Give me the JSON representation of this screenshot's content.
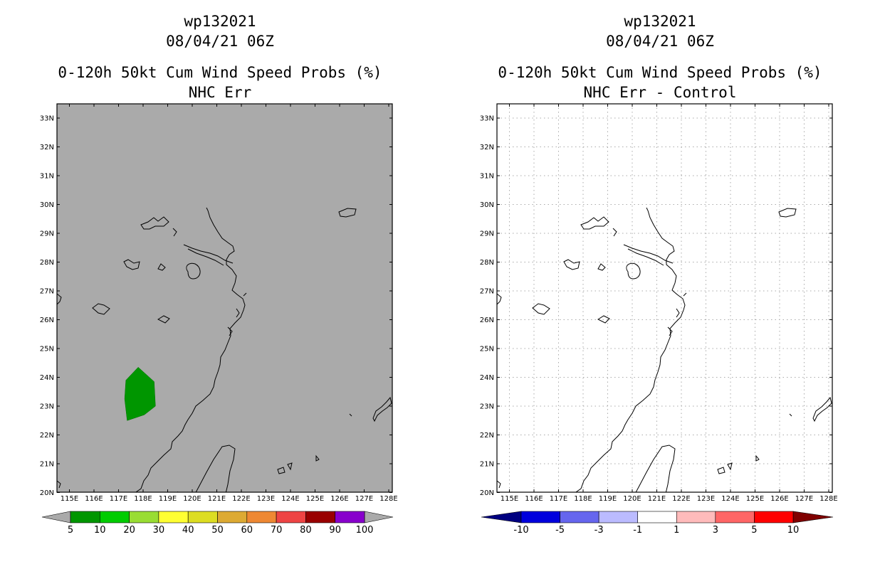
{
  "panels": [
    {
      "id": "left",
      "titles": [
        "wp132021",
        "08/04/21 06Z",
        "0-120h 50kt Cum Wind Speed Probs (%)",
        "NHC Err"
      ],
      "background": "#aaaaaa",
      "colorbar": {
        "labels": [
          "5",
          "10",
          "20",
          "30",
          "40",
          "50",
          "60",
          "70",
          "80",
          "90",
          "100"
        ],
        "colors": [
          "#009600",
          "#00cc00",
          "#99dd33",
          "#ffff33",
          "#dddd22",
          "#ddaa33",
          "#ee8833",
          "#ee4444",
          "#990000",
          "#8800cc"
        ],
        "end_colors": [
          "#aaaaaa",
          "#aaaaaa"
        ]
      }
    },
    {
      "id": "right",
      "titles": [
        "wp132021",
        "08/04/21 06Z",
        "0-120h 50kt Cum Wind Speed Probs (%)",
        "NHC Err - Control"
      ],
      "background": "#ffffff",
      "colorbar": {
        "labels": [
          "-10",
          "-5",
          "-3",
          "-1",
          "1",
          "3",
          "5",
          "10"
        ],
        "colors": [
          "#0000dd",
          "#6666ee",
          "#bbbbff",
          "#ffffff",
          "#ffbbbb",
          "#ff6666",
          "#ff0000"
        ],
        "end_colors": [
          "#000080",
          "#800000"
        ]
      }
    }
  ],
  "axes": {
    "lat_labels": [
      "33N",
      "32N",
      "31N",
      "30N",
      "29N",
      "28N",
      "27N",
      "26N",
      "25N",
      "24N",
      "23N",
      "22N",
      "21N",
      "20N"
    ],
    "lon_labels": [
      "115E",
      "116E",
      "117E",
      "118E",
      "119E",
      "120E",
      "121E",
      "122E",
      "123E",
      "124E",
      "125E",
      "126E",
      "127E",
      "128E"
    ]
  },
  "probability_area": {
    "color": "#009600",
    "value_range": "5-10",
    "polygon_lonlat": [
      [
        117.8,
        24.35
      ],
      [
        118.45,
        23.85
      ],
      [
        118.5,
        23.0
      ],
      [
        118.05,
        22.7
      ],
      [
        117.35,
        22.5
      ],
      [
        117.25,
        23.25
      ],
      [
        117.3,
        23.9
      ]
    ]
  }
}
